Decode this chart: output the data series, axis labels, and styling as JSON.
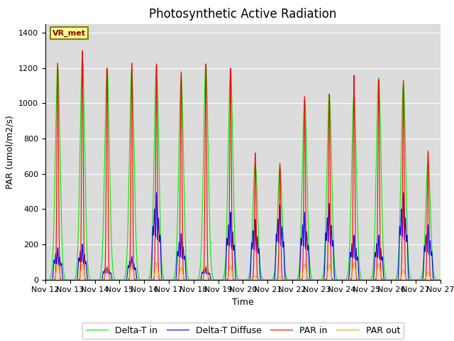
{
  "title": "Photosynthetic Active Radiation",
  "ylabel": "PAR (umol/m2/s)",
  "xlabel": "Time",
  "annotation": "VR_met",
  "ylim": [
    0,
    1450
  ],
  "background_color": "#dcdcdc",
  "grid_color": "#f0f0f0",
  "xtick_labels": [
    "Nov 12",
    "Nov 13",
    "Nov 14",
    "Nov 15",
    "Nov 16",
    "Nov 17",
    "Nov 18",
    "Nov 19",
    "Nov 20",
    "Nov 21",
    "Nov 22",
    "Nov 23",
    "Nov 24",
    "Nov 25",
    "Nov 26",
    "Nov 27"
  ],
  "legend_entries": [
    "PAR in",
    "PAR out",
    "Delta-T in",
    "Delta-T Diffuse"
  ],
  "colors": {
    "par_in": "#ff0000",
    "par_out": "#ffa500",
    "delta_t_in": "#00ee00",
    "delta_t_diffuse": "#0000ff"
  },
  "day_peaks_par_in": [
    1230,
    1300,
    1200,
    1230,
    1225,
    1180,
    1225,
    1200,
    720,
    660,
    1040,
    1055,
    1160,
    1135,
    1130,
    730
  ],
  "day_peaks_par_out": [
    90,
    90,
    75,
    90,
    95,
    70,
    80,
    80,
    20,
    15,
    90,
    85,
    100,
    90,
    55,
    45
  ],
  "day_peaks_delta_in": [
    1210,
    1260,
    1200,
    1200,
    1215,
    1145,
    1220,
    1195,
    660,
    635,
    1020,
    1050,
    1055,
    1145,
    1110,
    670
  ],
  "day_peaks_delta_diffuse": [
    180,
    200,
    75,
    130,
    490,
    260,
    70,
    380,
    340,
    420,
    380,
    430,
    250,
    250,
    490,
    310
  ],
  "num_days": 16,
  "pts_per_day": 288,
  "title_fontsize": 12,
  "label_fontsize": 9,
  "tick_fontsize": 8,
  "legend_fontsize": 9,
  "linewidth": 0.8
}
